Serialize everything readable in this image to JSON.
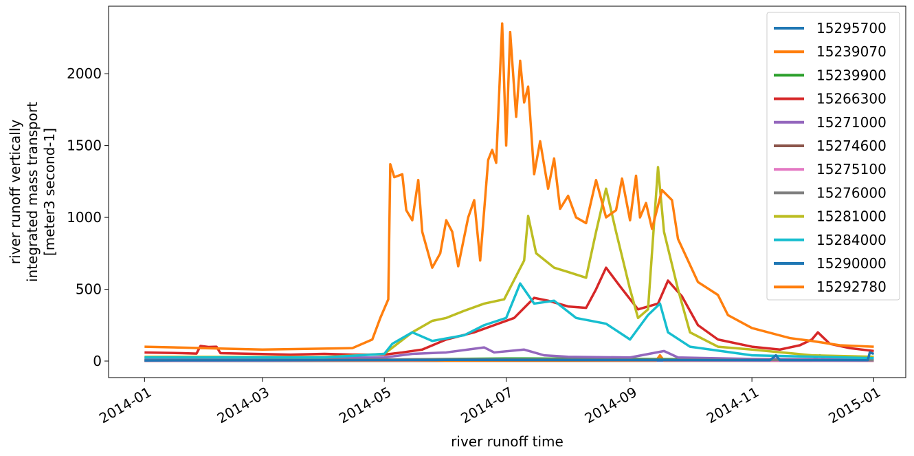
{
  "chart_data": {
    "type": "line",
    "xlabel": "river runoff time",
    "ylabel_lines": [
      "river runoff vertically",
      "integrated mass transport",
      "[meter3 second-1]"
    ],
    "x_ticks": [
      "2014-01",
      "2014-03",
      "2014-05",
      "2014-07",
      "2014-09",
      "2014-11",
      "2015-01"
    ],
    "x_tick_values": [
      "2014-01-01",
      "2014-03-01",
      "2014-05-01",
      "2014-07-01",
      "2014-09-01",
      "2014-11-01",
      "2015-01-01"
    ],
    "xlim": [
      "2013-12-14",
      "2015-01-17"
    ],
    "y_ticks": [
      0,
      500,
      1000,
      1500,
      2000
    ],
    "ylim": [
      -115,
      2470
    ],
    "legend_position": "top-right",
    "series": [
      {
        "name": "15295700",
        "color": "#1f77b4",
        "points": [
          [
            "2014-01-01",
            1
          ],
          [
            "2014-06-01",
            2
          ],
          [
            "2014-12-01",
            3
          ],
          [
            "2014-12-05",
            40
          ],
          [
            "2014-12-08",
            4
          ],
          [
            "2014-12-29",
            8
          ],
          [
            "2014-12-31",
            20
          ]
        ]
      },
      {
        "name": "15239070",
        "color": "#ff7f0e",
        "points": [
          [
            "2014-01-01",
            2
          ],
          [
            "2014-09-14",
            2
          ],
          [
            "2014-09-16",
            40
          ],
          [
            "2014-09-18",
            2
          ],
          [
            "2015-01-01",
            2
          ]
        ]
      },
      {
        "name": "15239900",
        "color": "#2ca02c",
        "points": [
          [
            "2014-01-01",
            8
          ],
          [
            "2014-05-01",
            10
          ],
          [
            "2014-07-01",
            18
          ],
          [
            "2014-09-01",
            15
          ],
          [
            "2014-11-01",
            10
          ],
          [
            "2015-01-01",
            8
          ]
        ]
      },
      {
        "name": "15266300",
        "color": "#d62728",
        "points": [
          [
            "2014-01-01",
            60
          ],
          [
            "2014-01-20",
            55
          ],
          [
            "2014-01-27",
            52
          ],
          [
            "2014-01-29",
            105
          ],
          [
            "2014-02-02",
            98
          ],
          [
            "2014-02-06",
            100
          ],
          [
            "2014-02-08",
            55
          ],
          [
            "2014-03-15",
            45
          ],
          [
            "2014-04-01",
            50
          ],
          [
            "2014-04-15",
            45
          ],
          [
            "2014-05-01",
            45
          ],
          [
            "2014-05-10",
            60
          ],
          [
            "2014-05-20",
            80
          ],
          [
            "2014-06-01",
            150
          ],
          [
            "2014-06-15",
            200
          ],
          [
            "2014-06-25",
            250
          ],
          [
            "2014-07-05",
            300
          ],
          [
            "2014-07-15",
            440
          ],
          [
            "2014-07-22",
            420
          ],
          [
            "2014-08-01",
            380
          ],
          [
            "2014-08-10",
            370
          ],
          [
            "2014-08-15",
            500
          ],
          [
            "2014-08-20",
            650
          ],
          [
            "2014-08-27",
            520
          ],
          [
            "2014-09-05",
            360
          ],
          [
            "2014-09-15",
            400
          ],
          [
            "2014-09-20",
            560
          ],
          [
            "2014-09-27",
            450
          ],
          [
            "2014-10-05",
            250
          ],
          [
            "2014-10-15",
            150
          ],
          [
            "2014-11-01",
            100
          ],
          [
            "2014-11-15",
            80
          ],
          [
            "2014-11-25",
            110
          ],
          [
            "2014-12-01",
            150
          ],
          [
            "2014-12-04",
            200
          ],
          [
            "2014-12-10",
            120
          ],
          [
            "2014-12-20",
            90
          ],
          [
            "2015-01-01",
            70
          ]
        ]
      },
      {
        "name": "15271000",
        "color": "#9467bd",
        "points": [
          [
            "2014-01-01",
            20
          ],
          [
            "2014-05-01",
            25
          ],
          [
            "2014-05-15",
            50
          ],
          [
            "2014-06-01",
            60
          ],
          [
            "2014-06-20",
            95
          ],
          [
            "2014-06-25",
            60
          ],
          [
            "2014-07-10",
            80
          ],
          [
            "2014-07-20",
            40
          ],
          [
            "2014-08-01",
            30
          ],
          [
            "2014-09-01",
            25
          ],
          [
            "2014-09-18",
            70
          ],
          [
            "2014-09-25",
            25
          ],
          [
            "2014-11-01",
            15
          ],
          [
            "2015-01-01",
            10
          ]
        ]
      },
      {
        "name": "15274600",
        "color": "#8c564b",
        "points": [
          [
            "2014-01-01",
            3
          ],
          [
            "2014-06-01",
            8
          ],
          [
            "2014-09-01",
            6
          ],
          [
            "2015-01-01",
            3
          ]
        ]
      },
      {
        "name": "15275100",
        "color": "#e377c2",
        "points": [
          [
            "2014-01-01",
            2
          ],
          [
            "2014-05-15",
            6
          ],
          [
            "2014-06-15",
            10
          ],
          [
            "2014-08-01",
            8
          ],
          [
            "2014-10-01",
            4
          ],
          [
            "2015-01-01",
            2
          ]
        ]
      },
      {
        "name": "15276000",
        "color": "#7f7f7f",
        "points": [
          [
            "2014-01-01",
            5
          ],
          [
            "2014-06-01",
            12
          ],
          [
            "2014-09-01",
            10
          ],
          [
            "2015-01-01",
            5
          ]
        ]
      },
      {
        "name": "15281000",
        "color": "#bcbd22",
        "points": [
          [
            "2014-01-01",
            30
          ],
          [
            "2014-04-01",
            28
          ],
          [
            "2014-05-01",
            50
          ],
          [
            "2014-05-15",
            200
          ],
          [
            "2014-05-25",
            280
          ],
          [
            "2014-06-01",
            300
          ],
          [
            "2014-06-10",
            350
          ],
          [
            "2014-06-20",
            400
          ],
          [
            "2014-06-30",
            430
          ],
          [
            "2014-07-10",
            700
          ],
          [
            "2014-07-12",
            1010
          ],
          [
            "2014-07-16",
            750
          ],
          [
            "2014-07-25",
            650
          ],
          [
            "2014-08-01",
            620
          ],
          [
            "2014-08-10",
            580
          ],
          [
            "2014-08-15",
            900
          ],
          [
            "2014-08-20",
            1200
          ],
          [
            "2014-08-25",
            900
          ],
          [
            "2014-09-01",
            500
          ],
          [
            "2014-09-05",
            300
          ],
          [
            "2014-09-10",
            360
          ],
          [
            "2014-09-15",
            1350
          ],
          [
            "2014-09-18",
            900
          ],
          [
            "2014-09-25",
            500
          ],
          [
            "2014-10-01",
            200
          ],
          [
            "2014-10-15",
            100
          ],
          [
            "2014-11-01",
            80
          ],
          [
            "2014-12-01",
            40
          ],
          [
            "2015-01-01",
            30
          ]
        ]
      },
      {
        "name": "15284000",
        "color": "#17becf",
        "points": [
          [
            "2014-01-01",
            25
          ],
          [
            "2014-04-01",
            25
          ],
          [
            "2014-05-01",
            50
          ],
          [
            "2014-05-05",
            120
          ],
          [
            "2014-05-15",
            200
          ],
          [
            "2014-05-25",
            140
          ],
          [
            "2014-06-10",
            180
          ],
          [
            "2014-06-20",
            250
          ],
          [
            "2014-07-01",
            300
          ],
          [
            "2014-07-08",
            540
          ],
          [
            "2014-07-15",
            400
          ],
          [
            "2014-07-25",
            420
          ],
          [
            "2014-08-05",
            300
          ],
          [
            "2014-08-20",
            260
          ],
          [
            "2014-09-01",
            150
          ],
          [
            "2014-09-10",
            320
          ],
          [
            "2014-09-16",
            400
          ],
          [
            "2014-09-20",
            200
          ],
          [
            "2014-10-01",
            100
          ],
          [
            "2014-11-01",
            40
          ],
          [
            "2015-01-01",
            20
          ]
        ]
      },
      {
        "name": "15290000",
        "color": "#1f77b4",
        "points": [
          [
            "2014-01-01",
            4
          ],
          [
            "2014-06-01",
            8
          ],
          [
            "2014-11-10",
            6
          ],
          [
            "2014-11-13",
            40
          ],
          [
            "2014-11-15",
            6
          ],
          [
            "2014-12-29",
            6
          ],
          [
            "2014-12-30",
            60
          ],
          [
            "2015-01-01",
            50
          ]
        ]
      },
      {
        "name": "15292780",
        "color": "#ff7f0e",
        "points": [
          [
            "2014-01-01",
            100
          ],
          [
            "2014-03-01",
            80
          ],
          [
            "2014-04-15",
            90
          ],
          [
            "2014-04-25",
            150
          ],
          [
            "2014-04-29",
            300
          ],
          [
            "2014-05-03",
            430
          ],
          [
            "2014-05-04",
            1370
          ],
          [
            "2014-05-06",
            1280
          ],
          [
            "2014-05-10",
            1300
          ],
          [
            "2014-05-12",
            1050
          ],
          [
            "2014-05-15",
            980
          ],
          [
            "2014-05-18",
            1260
          ],
          [
            "2014-05-20",
            900
          ],
          [
            "2014-05-25",
            650
          ],
          [
            "2014-05-29",
            750
          ],
          [
            "2014-06-01",
            980
          ],
          [
            "2014-06-04",
            900
          ],
          [
            "2014-06-07",
            660
          ],
          [
            "2014-06-12",
            1000
          ],
          [
            "2014-06-15",
            1120
          ],
          [
            "2014-06-18",
            700
          ],
          [
            "2014-06-22",
            1400
          ],
          [
            "2014-06-24",
            1470
          ],
          [
            "2014-06-26",
            1380
          ],
          [
            "2014-06-29",
            2350
          ],
          [
            "2014-07-01",
            1500
          ],
          [
            "2014-07-03",
            2290
          ],
          [
            "2014-07-06",
            1700
          ],
          [
            "2014-07-08",
            2090
          ],
          [
            "2014-07-10",
            1800
          ],
          [
            "2014-07-12",
            1910
          ],
          [
            "2014-07-15",
            1300
          ],
          [
            "2014-07-18",
            1530
          ],
          [
            "2014-07-22",
            1200
          ],
          [
            "2014-07-25",
            1410
          ],
          [
            "2014-07-28",
            1060
          ],
          [
            "2014-08-01",
            1150
          ],
          [
            "2014-08-05",
            1000
          ],
          [
            "2014-08-10",
            960
          ],
          [
            "2014-08-15",
            1260
          ],
          [
            "2014-08-20",
            1000
          ],
          [
            "2014-08-25",
            1050
          ],
          [
            "2014-08-28",
            1270
          ],
          [
            "2014-09-01",
            980
          ],
          [
            "2014-09-04",
            1290
          ],
          [
            "2014-09-06",
            1000
          ],
          [
            "2014-09-09",
            1100
          ],
          [
            "2014-09-12",
            920
          ],
          [
            "2014-09-17",
            1190
          ],
          [
            "2014-09-22",
            1120
          ],
          [
            "2014-09-25",
            850
          ],
          [
            "2014-10-05",
            550
          ],
          [
            "2014-10-15",
            460
          ],
          [
            "2014-10-20",
            320
          ],
          [
            "2014-11-01",
            230
          ],
          [
            "2014-11-20",
            160
          ],
          [
            "2014-12-01",
            140
          ],
          [
            "2014-12-15",
            110
          ],
          [
            "2015-01-01",
            100
          ]
        ]
      }
    ]
  }
}
